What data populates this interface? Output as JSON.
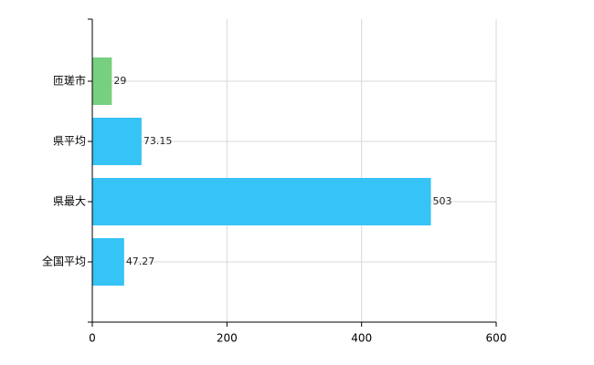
{
  "chart_data": {
    "type": "bar",
    "orientation": "horizontal",
    "categories": [
      "匝瑳市",
      "県平均",
      "県最大",
      "全国平均"
    ],
    "values": [
      29,
      73.15,
      503,
      47.27
    ],
    "colors": [
      "#77d07f",
      "#36c3f5",
      "#36c3f5",
      "#36c3f5"
    ],
    "xlim": [
      0,
      600
    ],
    "xticks": [
      0,
      200,
      400,
      600
    ],
    "grid": true
  }
}
